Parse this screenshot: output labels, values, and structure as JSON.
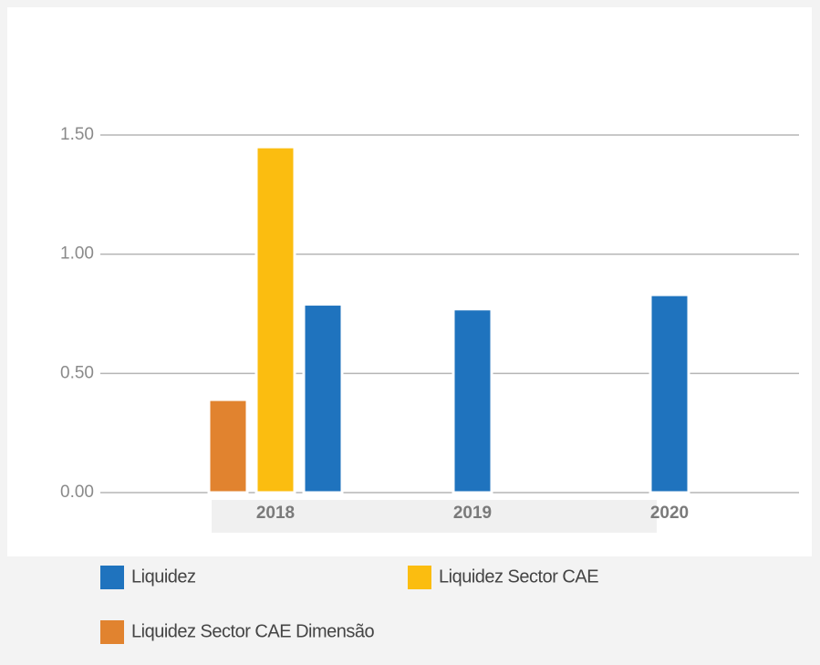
{
  "chart_data": {
    "type": "bar",
    "categories": [
      "2018",
      "2019",
      "2020"
    ],
    "series": [
      {
        "name": "Liquidez",
        "color": "#1f73be",
        "values": [
          0.79,
          0.77,
          0.83
        ]
      },
      {
        "name": "Liquidez Sector CAE",
        "color": "#fbbd10",
        "values": [
          1.45,
          null,
          null
        ]
      },
      {
        "name": "Liquidez Sector CAE Dimensão",
        "color": "#e1832f",
        "values": [
          0.39,
          null,
          null
        ]
      }
    ],
    "ylim": [
      0,
      1.5
    ],
    "yticks": [
      {
        "value": 0,
        "label": "0.00"
      },
      {
        "value": 0.5,
        "label": "0.50"
      },
      {
        "value": 1,
        "label": "1.00"
      },
      {
        "value": 1.5,
        "label": "1.50"
      }
    ],
    "grid": true
  }
}
